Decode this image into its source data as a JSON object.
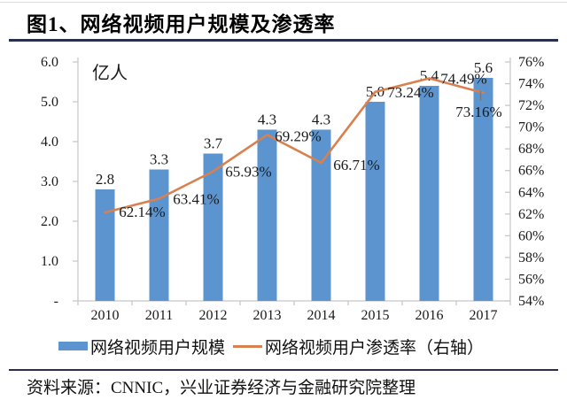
{
  "page": {
    "title": "图1、网络视频用户规模及渗透率",
    "source": "资料来源：CNNIC，兴业证券经济与金融研究院整理"
  },
  "colors": {
    "bar": "#5b94cf",
    "line": "#d9804e",
    "rule": "#2a2e4f",
    "axis": "#c8c8c8"
  },
  "legend": {
    "items": [
      {
        "label": "网络视频用户规模",
        "swatch": "bar"
      },
      {
        "label": "网络视频用户渗透率（右轴）",
        "swatch": "line"
      }
    ]
  },
  "chart_data": {
    "type": "bar",
    "subtype": "combo-bar-line-dual-axis",
    "categories": [
      "2010",
      "2011",
      "2012",
      "2013",
      "2014",
      "2015",
      "2016",
      "2017"
    ],
    "series": [
      {
        "name": "网络视频用户规模",
        "type": "bar",
        "axis": "left",
        "unit": "亿人",
        "color": "#5b94cf",
        "values": [
          2.8,
          3.3,
          3.7,
          4.3,
          4.3,
          5.0,
          5.4,
          5.6
        ]
      },
      {
        "name": "网络视频用户渗透率（右轴）",
        "type": "line",
        "axis": "right",
        "unit": "%",
        "color": "#d9804e",
        "values": [
          62.14,
          63.41,
          65.93,
          69.29,
          66.71,
          73.24,
          74.49,
          73.16
        ]
      }
    ],
    "left_axis": {
      "label": "亿人",
      "min": 0,
      "max": 6,
      "step": 1,
      "tick_labels": [
        "6.0",
        "5.0",
        "4.0",
        "3.0",
        "2.0",
        "1.0",
        "-"
      ]
    },
    "right_axis": {
      "min": 54,
      "max": 76,
      "step": 2,
      "tick_labels": [
        "76%",
        "74%",
        "72%",
        "70%",
        "68%",
        "66%",
        "64%",
        "62%",
        "60%",
        "58%",
        "56%",
        "54%"
      ]
    },
    "grid": false,
    "legend_position": "bottom",
    "data_labels": true
  }
}
